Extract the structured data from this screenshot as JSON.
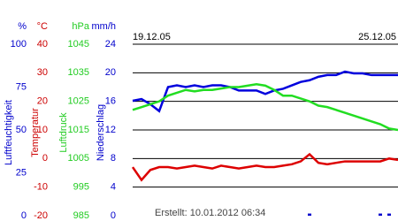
{
  "chart_data": {
    "type": "line",
    "x_labels": [
      "19.12.05",
      "25.12.05"
    ],
    "footer": "Erstellt: 10.01.2012 06:34",
    "grid": true,
    "axes": [
      {
        "unit": "%",
        "label": "Luftfeuchtigkeit",
        "color": "#0000cc",
        "ylim": [
          0,
          100
        ],
        "yticks": [
          0,
          25,
          50,
          75,
          100
        ]
      },
      {
        "unit": "°C",
        "label": "Temperatur",
        "color": "#cc0000",
        "ylim": [
          -20,
          40
        ],
        "yticks": [
          -20,
          -10,
          0,
          10,
          20,
          30,
          40
        ]
      },
      {
        "unit": "hPa",
        "label": "Luftdruck",
        "color": "#22cc22",
        "ylim": [
          985,
          1045
        ],
        "yticks": [
          985,
          995,
          1005,
          1015,
          1025,
          1035,
          1045
        ]
      },
      {
        "unit": "mm/h",
        "label": "Niederschlag",
        "color": "#0000cc",
        "ylim": [
          0,
          24
        ],
        "yticks": [
          0,
          4,
          8,
          12,
          16,
          20,
          24
        ]
      }
    ],
    "series": [
      {
        "axis": 0,
        "color": "#0000dd",
        "values": [
          67,
          68,
          65,
          61,
          75,
          76,
          75,
          76,
          75,
          76,
          76,
          75,
          73,
          73,
          73,
          71,
          73,
          74,
          76,
          78,
          79,
          81,
          82,
          82,
          84,
          83,
          83,
          82,
          82,
          82,
          82
        ]
      },
      {
        "axis": 1,
        "color": "#dd0000",
        "values": [
          -3,
          -7.5,
          -4,
          -3,
          -3,
          -3.5,
          -3,
          -2.5,
          -3,
          -3.5,
          -2.5,
          -3,
          -3.5,
          -3,
          -2.5,
          -3,
          -3,
          -2.5,
          -2,
          -1,
          1.5,
          -1.5,
          -2,
          -1.5,
          -1,
          -1,
          -1,
          -1,
          -1,
          0,
          -0.5
        ]
      },
      {
        "axis": 2,
        "color": "#22dd22",
        "values": [
          1022,
          1023,
          1024,
          1025,
          1027,
          1028,
          1029,
          1028.5,
          1029,
          1029,
          1029.5,
          1030,
          1030,
          1030.5,
          1031,
          1030.5,
          1029,
          1027,
          1027,
          1026,
          1025,
          1023.5,
          1023,
          1022,
          1021,
          1020,
          1019,
          1018,
          1017,
          1015.5,
          1015
        ]
      },
      {
        "axis": 3,
        "type": "bar",
        "color": "#0000cc",
        "values": [
          0,
          0,
          0,
          0,
          0,
          0,
          0,
          0,
          0,
          0,
          0,
          0,
          0,
          0,
          0,
          0,
          0,
          0,
          0,
          0,
          0.3,
          0,
          0,
          0,
          0,
          0,
          0,
          0,
          0.3,
          0.3,
          0
        ]
      }
    ]
  }
}
